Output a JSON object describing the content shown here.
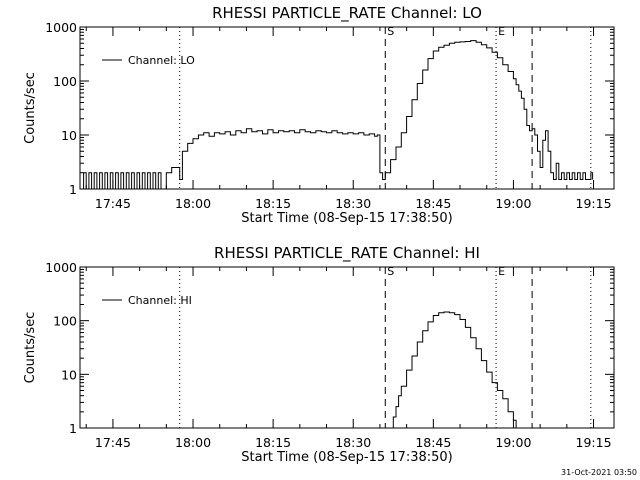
{
  "footer": {
    "stamp": "31-Oct-2021 03:50"
  },
  "chart_data": [
    {
      "type": "line",
      "title": "RHESSI PARTICLE_RATE Channel: LO",
      "xlabel": "Start Time (08-Sep-15 17:38:50)",
      "ylabel": "Counts/sec",
      "yscale": "log",
      "ylim": [
        1,
        1000
      ],
      "xlim_minutes_after_start": [
        0,
        100
      ],
      "x_ticks": [
        "17:45",
        "18:00",
        "18:15",
        "18:30",
        "18:45",
        "19:00",
        "19:15"
      ],
      "y_ticks": [
        "1",
        "10",
        "100",
        "1000"
      ],
      "legend": {
        "label": "Channel: LO",
        "placement": "top-left"
      },
      "markers": [
        {
          "label": "",
          "time": "17:57:30",
          "style": "dotted"
        },
        {
          "label": "S",
          "time": "18:36:00",
          "style": "dashed"
        },
        {
          "label": "E",
          "time": "18:56:45",
          "style": "dotted"
        },
        {
          "label": "",
          "time": "19:03:30",
          "style": "dashed"
        },
        {
          "label": "",
          "time": "19:14:30",
          "style": "dotted"
        }
      ],
      "series": [
        {
          "name": "Channel: LO",
          "x": [
            "17:38:50",
            "17:39:30",
            "17:40:00",
            "17:40:30",
            "17:41:00",
            "17:41:30",
            "17:42:00",
            "17:42:30",
            "17:43:00",
            "17:43:30",
            "17:44:00",
            "17:44:30",
            "17:45:00",
            "17:45:30",
            "17:46:00",
            "17:46:30",
            "17:47:00",
            "17:47:30",
            "17:48:00",
            "17:48:30",
            "17:49:00",
            "17:49:30",
            "17:50:00",
            "17:50:30",
            "17:51:00",
            "17:51:30",
            "17:52:00",
            "17:52:30",
            "17:53:00",
            "17:53:30",
            "17:54:00",
            "17:55:00",
            "17:56:00",
            "17:57:00",
            "17:57:30",
            "17:58:00",
            "17:59:00",
            "18:00:00",
            "18:01:00",
            "18:02:00",
            "18:03:00",
            "18:04:00",
            "18:05:00",
            "18:06:00",
            "18:07:00",
            "18:08:00",
            "18:09:00",
            "18:10:00",
            "18:11:00",
            "18:12:00",
            "18:13:00",
            "18:14:00",
            "18:15:00",
            "18:16:00",
            "18:17:00",
            "18:18:00",
            "18:19:00",
            "18:20:00",
            "18:21:00",
            "18:22:00",
            "18:23:00",
            "18:24:00",
            "18:25:00",
            "18:26:00",
            "18:27:00",
            "18:28:00",
            "18:29:00",
            "18:30:00",
            "18:31:00",
            "18:32:00",
            "18:33:00",
            "18:34:00",
            "18:34:30",
            "18:35:00",
            "18:35:30",
            "18:36:00",
            "18:37:00",
            "18:38:00",
            "18:39:00",
            "18:40:00",
            "18:41:00",
            "18:42:00",
            "18:43:00",
            "18:44:00",
            "18:45:00",
            "18:46:00",
            "18:47:00",
            "18:48:00",
            "18:49:00",
            "18:50:00",
            "18:51:00",
            "18:52:00",
            "18:53:00",
            "18:54:00",
            "18:55:00",
            "18:56:00",
            "18:57:00",
            "18:58:00",
            "18:59:00",
            "19:00:00",
            "19:00:30",
            "19:01:00",
            "19:01:30",
            "19:02:00",
            "19:02:30",
            "19:03:00",
            "19:03:30",
            "19:04:00",
            "19:04:30",
            "19:05:00",
            "19:05:30",
            "19:06:00",
            "19:06:30",
            "19:07:00",
            "19:07:30",
            "19:08:00",
            "19:08:30",
            "19:09:00",
            "19:09:30",
            "19:10:00",
            "19:10:30",
            "19:11:00",
            "19:11:30",
            "19:12:00",
            "19:12:30",
            "19:13:00",
            "19:13:30",
            "19:14:00",
            "19:14:30",
            "19:14:50"
          ],
          "y": [
            1,
            2,
            1,
            2,
            1,
            2,
            1,
            2,
            1,
            2,
            1,
            2,
            1,
            2,
            1,
            2,
            1,
            2,
            1,
            2,
            1,
            2,
            1,
            2,
            1,
            2,
            1,
            2,
            1,
            2,
            1,
            2,
            2.5,
            2.5,
            1.5,
            5,
            7,
            8.5,
            10,
            11,
            9.5,
            11,
            10.5,
            11.5,
            10,
            12,
            11,
            13,
            11.5,
            12,
            10.5,
            12.5,
            11,
            12,
            11.5,
            12,
            11,
            12.5,
            11.5,
            11,
            12,
            11.5,
            11,
            12,
            11,
            10.5,
            11,
            10.5,
            11,
            10,
            10.5,
            9.5,
            10,
            2,
            1.5,
            2,
            3.5,
            6,
            11,
            22,
            45,
            90,
            160,
            260,
            360,
            420,
            460,
            500,
            520,
            530,
            540,
            560,
            520,
            470,
            410,
            340,
            270,
            200,
            150,
            110,
            85,
            65,
            48,
            30,
            15,
            12,
            13,
            10,
            5,
            2.5,
            8,
            12,
            5,
            2,
            1.5,
            3,
            1.5,
            2,
            1.5,
            2,
            1.5,
            2,
            1.5,
            2,
            1.5,
            2,
            1.5,
            1.5,
            2,
            1.5
          ]
        }
      ]
    },
    {
      "type": "line",
      "title": "RHESSI PARTICLE_RATE Channel: HI",
      "xlabel": "Start Time (08-Sep-15 17:38:50)",
      "ylabel": "Counts/sec",
      "yscale": "log",
      "ylim": [
        1,
        1000
      ],
      "xlim_minutes_after_start": [
        0,
        100
      ],
      "x_ticks": [
        "17:45",
        "18:00",
        "18:15",
        "18:30",
        "18:45",
        "19:00",
        "19:15"
      ],
      "y_ticks": [
        "1",
        "10",
        "100",
        "1000"
      ],
      "legend": {
        "label": "Channel: HI",
        "placement": "top-left"
      },
      "markers": [
        {
          "label": "",
          "time": "17:57:30",
          "style": "dotted"
        },
        {
          "label": "S",
          "time": "18:36:00",
          "style": "dashed"
        },
        {
          "label": "E",
          "time": "18:56:45",
          "style": "dotted"
        },
        {
          "label": "",
          "time": "19:03:30",
          "style": "dashed"
        },
        {
          "label": "",
          "time": "19:14:30",
          "style": "dotted"
        }
      ],
      "series": [
        {
          "name": "Channel: HI",
          "x": [
            "18:37:00",
            "18:37:30",
            "18:38:00",
            "18:38:30",
            "18:39:00",
            "18:40:00",
            "18:41:00",
            "18:42:00",
            "18:43:00",
            "18:44:00",
            "18:45:00",
            "18:46:00",
            "18:47:00",
            "18:48:00",
            "18:49:00",
            "18:50:00",
            "18:51:00",
            "18:52:00",
            "18:53:00",
            "18:54:00",
            "18:55:00",
            "18:56:00",
            "18:57:00",
            "18:58:00",
            "18:59:00",
            "19:00:00",
            "19:00:30"
          ],
          "y": [
            1,
            1.6,
            2.5,
            4,
            6,
            12,
            22,
            40,
            65,
            95,
            125,
            140,
            145,
            140,
            130,
            105,
            75,
            48,
            30,
            18,
            11,
            7,
            5,
            3.5,
            2,
            1.4,
            1
          ]
        }
      ]
    }
  ]
}
